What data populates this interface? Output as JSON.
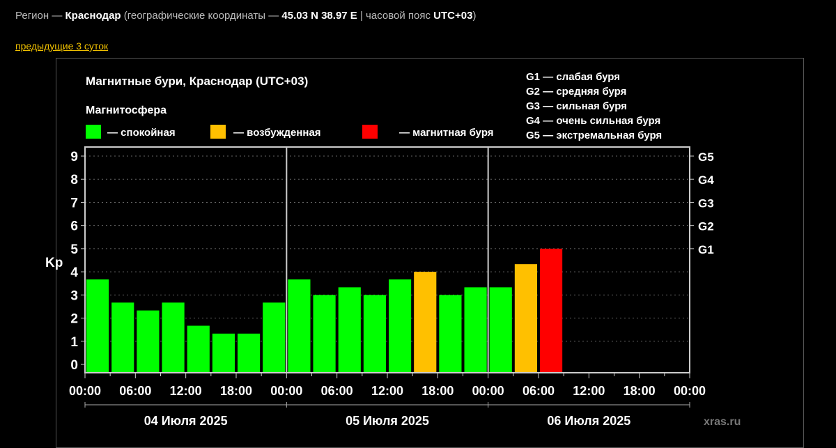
{
  "header": {
    "region_label": "Регион —",
    "city": "Краснодар",
    "coords_label": "(географические координаты —",
    "coords": "45.03 N 38.97 E",
    "tz_label": "| часовой пояс",
    "tz": "UTC+03",
    ")": ")",
    "close": ")"
  },
  "nav": {
    "prev_link": "предыдущие 3 суток"
  },
  "chart_data": {
    "type": "bar",
    "title": "Магнитные бури, Краснодар (UTC+03)",
    "legend_title": "Магнитосфера",
    "legend": [
      {
        "label": "— спокойная",
        "color": "#00ff00"
      },
      {
        "label": "— возбужденная",
        "color": "#ffc000"
      },
      {
        "label": "— магнитная буря",
        "color": "#ff0000"
      }
    ],
    "g_legend": [
      "G1 — слабая буря",
      "G2 — средняя буря",
      "G3 — сильная буря",
      "G4 — очень сильная буря",
      "G5 — экстремальная буря"
    ],
    "ylabel": "Kp",
    "ylim": [
      0,
      9
    ],
    "yticks": [
      "0",
      "1",
      "2",
      "3",
      "4",
      "5",
      "6",
      "7",
      "8",
      "9"
    ],
    "g_ticks": [
      {
        "label": "G1",
        "kp": 5
      },
      {
        "label": "G2",
        "kp": 6
      },
      {
        "label": "G3",
        "kp": 7
      },
      {
        "label": "G4",
        "kp": 8
      },
      {
        "label": "G5",
        "kp": 9
      }
    ],
    "xticks": [
      "00:00",
      "06:00",
      "12:00",
      "18:00",
      "00:00",
      "06:00",
      "12:00",
      "18:00",
      "00:00",
      "06:00",
      "12:00",
      "18:00",
      "00:00"
    ],
    "days": [
      "04 Июля 2025",
      "05 Июля 2025",
      "06 Июля 2025"
    ],
    "values": [
      3.67,
      2.67,
      2.33,
      2.67,
      1.67,
      1.33,
      1.33,
      2.67,
      3.67,
      3.0,
      3.33,
      3.0,
      3.67,
      4.0,
      3.0,
      3.33,
      3.33,
      4.33,
      5.0
    ],
    "colors": [
      "#00ff00",
      "#00ff00",
      "#00ff00",
      "#00ff00",
      "#00ff00",
      "#00ff00",
      "#00ff00",
      "#00ff00",
      "#00ff00",
      "#00ff00",
      "#00ff00",
      "#00ff00",
      "#00ff00",
      "#ffc000",
      "#00ff00",
      "#00ff00",
      "#00ff00",
      "#ffc000",
      "#ff0000"
    ],
    "watermark": "xras.ru"
  }
}
